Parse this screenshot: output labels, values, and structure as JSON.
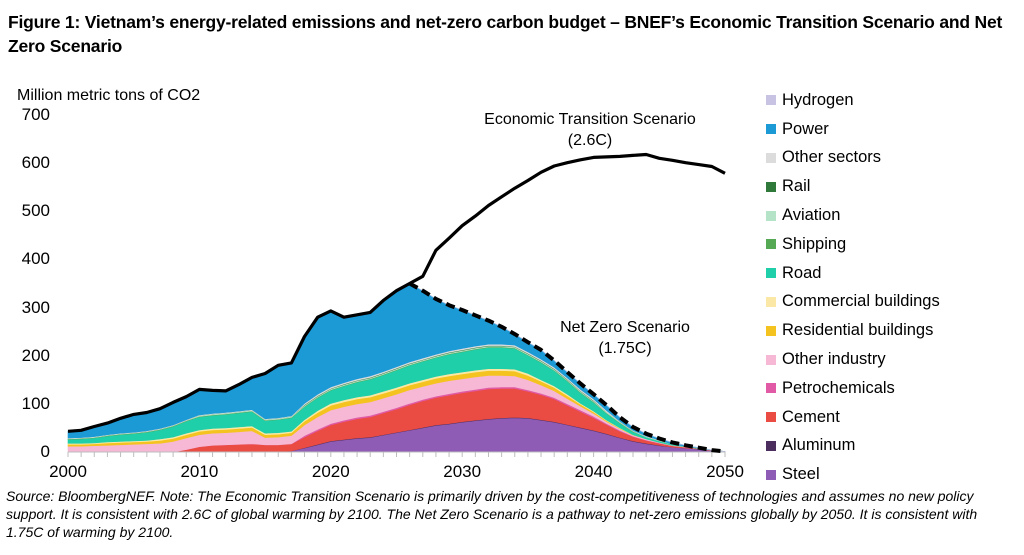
{
  "title": "Figure 1: Vietnam’s energy-related emissions and net-zero carbon budget – BNEF’s Economic Transition Scenario and Net Zero Scenario",
  "source": "Source: BloombergNEF. Note: The Economic Transition Scenario is primarily driven by the cost-competitiveness of technologies and assumes no new policy support. It is consistent with 2.6C of global warming by 2100. The Net Zero Scenario is a pathway to net-zero emissions globally by 2050. It is consistent with 1.75C of warming by 2100.",
  "chart_data": {
    "type": "area",
    "title": "Vietnam’s energy-related emissions and net-zero carbon budget",
    "ylabel": "Million metric tons of CO2",
    "xlabel": "",
    "xlim": [
      2000,
      2050
    ],
    "ylim": [
      0,
      700
    ],
    "grid": false,
    "legend_position": "right",
    "x_ticks": [
      "2000",
      "2010",
      "2020",
      "2030",
      "2040",
      "2050"
    ],
    "y_ticks": [
      "0",
      "100",
      "200",
      "300",
      "400",
      "500",
      "600",
      "700"
    ],
    "annotations": [
      {
        "text_line1": "Economic Transition Scenario",
        "text_line2": "(2.6C)"
      },
      {
        "text_line1": "Net Zero Scenario",
        "text_line2": "(1.75C)"
      }
    ],
    "x": [
      2000,
      2001,
      2002,
      2003,
      2004,
      2005,
      2006,
      2007,
      2008,
      2009,
      2010,
      2011,
      2012,
      2013,
      2014,
      2015,
      2016,
      2017,
      2018,
      2019,
      2020,
      2021,
      2022,
      2023,
      2024,
      2025,
      2026,
      2027,
      2028,
      2029,
      2030,
      2031,
      2032,
      2033,
      2034,
      2035,
      2036,
      2037,
      2038,
      2039,
      2040,
      2041,
      2042,
      2043,
      2044,
      2045,
      2046,
      2047,
      2048,
      2049,
      2050
    ],
    "series": [
      {
        "name": "Steel",
        "color": "#8e5bb5",
        "values": [
          0,
          0,
          0,
          0,
          0,
          0,
          0,
          0,
          0,
          0,
          0,
          1,
          1,
          1,
          1,
          1,
          1,
          2,
          8,
          15,
          22,
          25,
          28,
          30,
          35,
          40,
          45,
          50,
          55,
          58,
          62,
          65,
          68,
          70,
          71,
          70,
          66,
          62,
          56,
          50,
          44,
          37,
          29,
          22,
          17,
          13,
          10,
          8,
          6,
          3,
          1
        ]
      },
      {
        "name": "Aluminum",
        "color": "#4b2e5e",
        "values": [
          0,
          0,
          0,
          0,
          0,
          0,
          0,
          0,
          0,
          0,
          0,
          0,
          0,
          0,
          0,
          0,
          0,
          0,
          1,
          1,
          1,
          1,
          1,
          1,
          1,
          1,
          1,
          1,
          1,
          1,
          1,
          1,
          1,
          1,
          1,
          1,
          1,
          1,
          1,
          1,
          1,
          1,
          1,
          1,
          1,
          1,
          0,
          0,
          0,
          0,
          0
        ]
      },
      {
        "name": "Cement",
        "color": "#ea4b43",
        "values": [
          0,
          0,
          0,
          0,
          0,
          0,
          0,
          0,
          0,
          5,
          11,
          13,
          14,
          15,
          16,
          14,
          14,
          15,
          22,
          28,
          33,
          37,
          40,
          42,
          45,
          48,
          52,
          55,
          57,
          59,
          60,
          61,
          62,
          61,
          60,
          55,
          52,
          47,
          40,
          33,
          26,
          19,
          13,
          9,
          6,
          4,
          3,
          2,
          1,
          1,
          0
        ]
      },
      {
        "name": "Petrochemicals",
        "color": "#e05aa6",
        "values": [
          0,
          0,
          0,
          0,
          0,
          0,
          0,
          0,
          0,
          0,
          0,
          0,
          0,
          0,
          0,
          0,
          0,
          0,
          3,
          3,
          3,
          3,
          3,
          3,
          3,
          3,
          3,
          3,
          3,
          3,
          3,
          3,
          3,
          3,
          3,
          3,
          3,
          3,
          3,
          3,
          3,
          2,
          2,
          1,
          1,
          1,
          0,
          0,
          0,
          0,
          0
        ]
      },
      {
        "name": "Other industry",
        "color": "#f6b8d4",
        "values": [
          12,
          12,
          13,
          14,
          15,
          16,
          17,
          18,
          22,
          24,
          25,
          25,
          25,
          26,
          27,
          15,
          16,
          17,
          22,
          26,
          28,
          28,
          28,
          28,
          28,
          28,
          28,
          27,
          27,
          27,
          26,
          26,
          25,
          24,
          23,
          21,
          17,
          14,
          11,
          8,
          6,
          4,
          3,
          2,
          2,
          1,
          1,
          1,
          0,
          0,
          0
        ]
      },
      {
        "name": "Residential buildings",
        "color": "#f5c31f",
        "values": [
          4,
          4,
          4,
          5,
          5,
          5,
          5,
          6,
          6,
          7,
          7,
          7,
          7,
          7,
          7,
          6,
          6,
          6,
          8,
          9,
          10,
          10,
          10,
          10,
          10,
          10,
          10,
          10,
          10,
          10,
          10,
          10,
          10,
          10,
          10,
          9,
          8,
          7,
          6,
          4,
          3,
          2,
          1,
          1,
          0,
          0,
          0,
          0,
          0,
          0,
          0
        ]
      },
      {
        "name": "Commercial buildings",
        "color": "#fbe8a6",
        "values": [
          2,
          2,
          2,
          2,
          2,
          2,
          2,
          3,
          3,
          3,
          3,
          3,
          3,
          3,
          3,
          3,
          3,
          3,
          3,
          4,
          4,
          4,
          4,
          4,
          4,
          4,
          4,
          4,
          4,
          4,
          4,
          4,
          4,
          4,
          4,
          4,
          3,
          3,
          3,
          2,
          2,
          1,
          1,
          0,
          0,
          0,
          0,
          0,
          0,
          0,
          0
        ]
      },
      {
        "name": "Road",
        "color": "#1fcfa9",
        "values": [
          8,
          9,
          10,
          12,
          14,
          15,
          17,
          19,
          22,
          25,
          27,
          27,
          28,
          29,
          30,
          26,
          27,
          28,
          27,
          27,
          27,
          29,
          31,
          33,
          34,
          36,
          37,
          38,
          39,
          41,
          42,
          43,
          44,
          44,
          43,
          38,
          36,
          32,
          27,
          22,
          18,
          14,
          10,
          6,
          4,
          3,
          2,
          1,
          1,
          0,
          0
        ]
      },
      {
        "name": "Shipping",
        "color": "#55a955",
        "values": [
          1,
          1,
          1,
          1,
          1,
          1,
          1,
          1,
          1,
          1,
          1,
          1,
          1,
          1,
          1,
          1,
          1,
          1,
          1,
          1,
          1,
          1,
          1,
          1,
          1,
          1,
          1,
          1,
          1,
          1,
          1,
          1,
          1,
          1,
          1,
          1,
          1,
          1,
          1,
          1,
          1,
          1,
          1,
          1,
          0,
          0,
          0,
          0,
          0,
          0,
          0
        ]
      },
      {
        "name": "Aviation",
        "color": "#b5e3c8",
        "values": [
          1,
          1,
          1,
          1,
          1,
          1,
          1,
          1,
          1,
          1,
          2,
          2,
          2,
          2,
          2,
          2,
          2,
          2,
          2,
          2,
          2,
          2,
          2,
          2,
          2,
          2,
          2,
          2,
          2,
          2,
          2,
          2,
          2,
          2,
          2,
          2,
          2,
          2,
          2,
          2,
          2,
          2,
          2,
          1,
          1,
          1,
          0,
          0,
          0,
          0,
          0
        ]
      },
      {
        "name": "Rail",
        "color": "#2f7a3a",
        "values": [
          0,
          0,
          0,
          0,
          0,
          0,
          0,
          0,
          0,
          0,
          0,
          0,
          0,
          0,
          0,
          0,
          0,
          0,
          1,
          1,
          1,
          1,
          1,
          1,
          1,
          1,
          1,
          1,
          1,
          1,
          1,
          1,
          1,
          1,
          1,
          1,
          1,
          1,
          1,
          1,
          1,
          0,
          0,
          0,
          0,
          0,
          0,
          0,
          0,
          0,
          0
        ]
      },
      {
        "name": "Other sectors",
        "color": "#dcdcdc",
        "values": [
          1,
          1,
          1,
          1,
          1,
          1,
          1,
          1,
          1,
          1,
          1,
          1,
          1,
          1,
          1,
          1,
          1,
          1,
          3,
          3,
          3,
          3,
          3,
          3,
          3,
          3,
          3,
          3,
          3,
          3,
          3,
          3,
          3,
          3,
          3,
          3,
          3,
          3,
          3,
          3,
          3,
          3,
          1,
          1,
          1,
          1,
          0,
          0,
          0,
          0,
          0
        ]
      },
      {
        "name": "Power",
        "color": "#1b9ad6",
        "values": [
          14,
          15,
          21,
          24,
          31,
          37,
          38,
          41,
          47,
          48,
          53,
          48,
          45,
          55,
          67,
          94,
          109,
          110,
          139,
          160,
          158,
          136,
          133,
          132,
          148,
          158,
          163,
          140,
          115,
          95,
          80,
          64,
          49,
          36,
          23,
          20,
          19,
          14,
          12,
          12,
          10,
          11,
          8,
          7,
          5,
          3,
          4,
          2,
          1,
          0,
          0
        ]
      },
      {
        "name": "Hydrogen",
        "color": "#c9c3e3",
        "values": [
          0,
          0,
          0,
          0,
          0,
          0,
          0,
          0,
          0,
          0,
          0,
          0,
          0,
          0,
          0,
          0,
          0,
          0,
          0,
          0,
          0,
          0,
          0,
          0,
          0,
          0,
          0,
          0,
          0,
          0,
          0,
          0,
          0,
          0,
          0,
          0,
          0,
          0,
          0,
          0,
          0,
          0,
          0,
          0,
          0,
          0,
          0,
          0,
          0,
          0,
          0
        ]
      }
    ],
    "lines": [
      {
        "name": "Economic Transition Scenario (2.6C)",
        "style": "solid",
        "color": "#000000",
        "values": [
          43,
          45,
          53,
          60,
          70,
          78,
          82,
          90,
          103,
          115,
          130,
          128,
          127,
          140,
          155,
          163,
          180,
          185,
          240,
          280,
          293,
          280,
          285,
          290,
          315,
          335,
          350,
          365,
          419,
          444,
          470,
          490,
          512,
          530,
          548,
          564,
          581,
          594,
          601,
          607,
          612,
          613,
          614,
          616,
          618,
          610,
          606,
          601,
          597,
          593,
          579
        ]
      },
      {
        "name": "Net Zero Scenario (1.75C)",
        "style": "dashed",
        "color": "#000000",
        "start_year": 2026,
        "values": [
          350,
          335,
          318,
          305,
          295,
          284,
          273,
          260,
          245,
          228,
          212,
          190,
          166,
          142,
          120,
          97,
          72,
          52,
          38,
          28,
          20,
          14,
          9,
          4,
          1
        ]
      }
    ]
  },
  "legend": [
    {
      "label": "Hydrogen",
      "color": "#c9c3e3"
    },
    {
      "label": "Power",
      "color": "#1b9ad6"
    },
    {
      "label": "Other sectors",
      "color": "#dcdcdc"
    },
    {
      "label": "Rail",
      "color": "#2f7a3a"
    },
    {
      "label": "Aviation",
      "color": "#b5e3c8"
    },
    {
      "label": "Shipping",
      "color": "#55a955"
    },
    {
      "label": "Road",
      "color": "#1fcfa9"
    },
    {
      "label": "Commercial buildings",
      "color": "#fbe8a6"
    },
    {
      "label": "Residential buildings",
      "color": "#f5c31f"
    },
    {
      "label": "Other industry",
      "color": "#f6b8d4"
    },
    {
      "label": "Petrochemicals",
      "color": "#e05aa6"
    },
    {
      "label": "Cement",
      "color": "#ea4b43"
    },
    {
      "label": "Aluminum",
      "color": "#4b2e5e"
    },
    {
      "label": "Steel",
      "color": "#8e5bb5"
    }
  ]
}
